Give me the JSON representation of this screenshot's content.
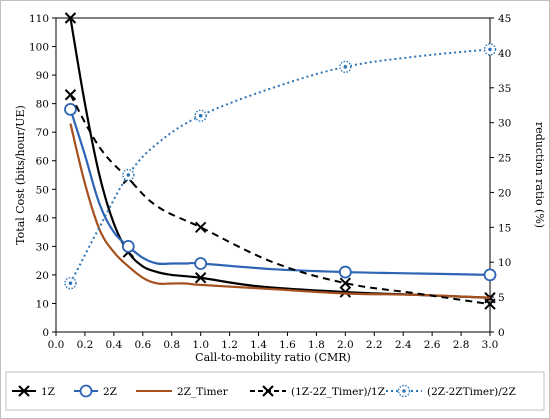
{
  "chart_data": {
    "type": "line",
    "xlabel": "Call-to-mobility ratio (CMR)",
    "ylabel": "Total Cost (bits/hour/UE)",
    "y2label": "reduction ratio (%)",
    "xlim": [
      0.0,
      3.0
    ],
    "ylim": [
      0,
      110
    ],
    "y2lim": [
      0,
      45
    ],
    "xticks": [
      "0.0",
      "0.2",
      "0.4",
      "0.6",
      "0.8",
      "1.0",
      "1.2",
      "1.4",
      "1.6",
      "1.8",
      "2.0",
      "2.2",
      "2.4",
      "2.6",
      "2.8",
      "3.0"
    ],
    "yticks": [
      "0",
      "10",
      "20",
      "30",
      "40",
      "50",
      "60",
      "70",
      "80",
      "90",
      "100",
      "110"
    ],
    "y2ticks": [
      "0",
      "5",
      "10",
      "15",
      "20",
      "25",
      "30",
      "35",
      "40",
      "45"
    ],
    "grid": false,
    "legend_position": "bottom",
    "series": [
      {
        "name": "1Z",
        "axis": "left",
        "color": "#000000",
        "marker": "x",
        "marker_x": [
          0.1,
          0.5,
          1.0,
          2.0,
          3.0
        ],
        "x": [
          0.1,
          0.2,
          0.3,
          0.4,
          0.5,
          0.6,
          0.7,
          0.8,
          1.0,
          1.4,
          2.0,
          2.5,
          3.0
        ],
        "values": [
          110,
          80,
          55,
          38,
          28,
          23,
          21,
          20,
          19,
          16,
          14,
          13,
          12
        ]
      },
      {
        "name": "2Z",
        "axis": "left",
        "color": "#2e64b4",
        "marker": "circle",
        "marker_x": [
          0.1,
          0.5,
          1.0,
          2.0,
          3.0
        ],
        "x": [
          0.1,
          0.2,
          0.3,
          0.4,
          0.5,
          0.6,
          0.7,
          0.8,
          0.9,
          1.0,
          1.5,
          2.0,
          2.5,
          3.0
        ],
        "values": [
          78,
          62,
          45,
          35,
          30,
          26,
          24,
          24,
          24,
          24,
          22,
          21,
          20.5,
          20
        ]
      },
      {
        "name": "2Z_Timer",
        "axis": "left",
        "color": "#a5501e",
        "marker": "none",
        "marker_x": [],
        "x": [
          0.1,
          0.2,
          0.3,
          0.4,
          0.5,
          0.6,
          0.7,
          0.8,
          0.9,
          1.0,
          1.5,
          2.0,
          2.5,
          3.0
        ],
        "values": [
          73,
          52,
          36,
          28,
          23,
          19,
          17,
          17,
          17,
          16.5,
          15,
          13.5,
          13,
          12
        ]
      },
      {
        "name": "(1Z-2Z_Timer)/1Z",
        "axis": "right",
        "color": "#000000",
        "marker": "x",
        "dash": "7,5",
        "marker_x": [
          0.1,
          0.5,
          1.0,
          2.0,
          3.0
        ],
        "x": [
          0.1,
          0.3,
          0.5,
          0.7,
          1.0,
          1.5,
          2.0,
          2.5,
          3.0
        ],
        "values": [
          34,
          26.5,
          22,
          18,
          15,
          10,
          7,
          5.5,
          4
        ]
      },
      {
        "name": "(2Z-2ZTimer)/2Z",
        "axis": "right",
        "color": "#2e75b6",
        "marker": "dotted-circle",
        "dash": "2,3",
        "marker_x": [
          0.1,
          0.5,
          1.0,
          2.0,
          3.0
        ],
        "x": [
          0.1,
          0.3,
          0.5,
          0.7,
          1.0,
          1.5,
          2.0,
          2.5,
          3.0
        ],
        "values": [
          7,
          15,
          22.5,
          27,
          31,
          35,
          38,
          39.5,
          40.5
        ]
      }
    ]
  }
}
